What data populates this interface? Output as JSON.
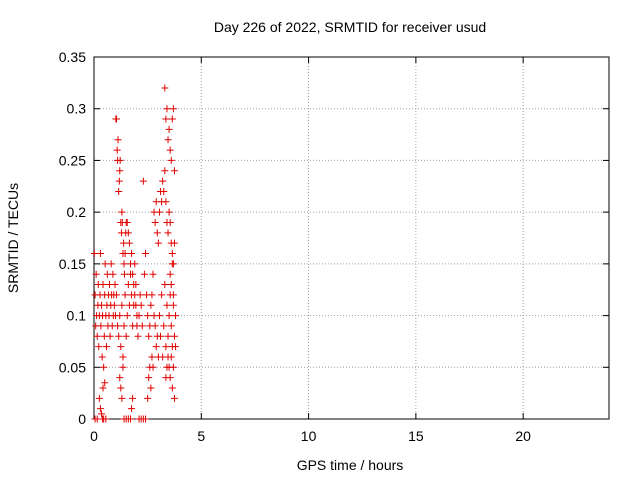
{
  "chart_data": {
    "type": "scatter",
    "title": "Day 226 of 2022, SRMTID for receiver usud",
    "xlabel": "GPS time / hours",
    "ylabel": "SRMTID / TECUs",
    "xlim": [
      0,
      24
    ],
    "ylim": [
      0,
      0.35
    ],
    "xticks": [
      0,
      5,
      10,
      15,
      20
    ],
    "xtick_labels": [
      "0",
      "5",
      "10",
      "15",
      "20"
    ],
    "yticks": [
      0,
      0.05,
      0.1,
      0.15,
      0.2,
      0.25,
      0.3,
      0.35
    ],
    "ytick_labels": [
      "0",
      "0.05",
      "0.1",
      "0.15",
      "0.2",
      "0.25",
      "0.3",
      "0.35"
    ],
    "grid": true,
    "marker": "+",
    "series": [
      {
        "color": "#e00000",
        "points": [
          [
            0.02,
            0.16
          ],
          [
            0.05,
            0.12
          ],
          [
            0.08,
            0.09
          ],
          [
            0.1,
            0.14
          ],
          [
            0.12,
            0.1
          ],
          [
            0.15,
            0.08
          ],
          [
            0.18,
            0.11
          ],
          [
            0.2,
            0.13
          ],
          [
            0.22,
            0.07
          ],
          [
            0.25,
            0.1
          ],
          [
            0.28,
            0.12
          ],
          [
            0.3,
            0.16
          ],
          [
            0.32,
            0.09
          ],
          [
            0.35,
            0.11
          ],
          [
            0.38,
            0.06
          ],
          [
            0.4,
            0.1
          ],
          [
            0.42,
            0.13
          ],
          [
            0.45,
            0.05
          ],
          [
            0.48,
            0.08
          ],
          [
            0.5,
            0.12
          ],
          [
            0.52,
            0.15
          ],
          [
            0.55,
            0.1
          ],
          [
            0.58,
            0.07
          ],
          [
            0.6,
            0.11
          ],
          [
            0.62,
            0.14
          ],
          [
            0.65,
            0.09
          ],
          [
            0.68,
            0.12
          ],
          [
            0.7,
            0.1
          ],
          [
            0.72,
            0.13
          ],
          [
            0.75,
            0.08
          ],
          [
            0.78,
            0.11
          ],
          [
            0.8,
            0.15
          ],
          [
            0.82,
            0.12
          ],
          [
            0.85,
            0.09
          ],
          [
            0.88,
            0.14
          ],
          [
            0.9,
            0.1
          ],
          [
            0.92,
            0.12
          ],
          [
            0.95,
            0.11
          ],
          [
            0.98,
            0.13
          ],
          [
            1.0,
            0.1
          ],
          [
            0.3,
            0.01
          ],
          [
            0.35,
            0.005
          ],
          [
            0.4,
            0.0
          ],
          [
            0.45,
            0.0
          ],
          [
            0.5,
            0.035
          ],
          [
            0.05,
            0.0
          ],
          [
            0.15,
            0.0
          ],
          [
            0.25,
            0.02
          ],
          [
            0.42,
            0.03
          ],
          [
            0.55,
            0.0
          ],
          [
            1.02,
            0.29
          ],
          [
            1.05,
            0.29
          ],
          [
            1.08,
            0.26
          ],
          [
            1.1,
            0.25
          ],
          [
            1.12,
            0.27
          ],
          [
            1.15,
            0.22
          ],
          [
            1.18,
            0.23
          ],
          [
            1.2,
            0.24
          ],
          [
            1.22,
            0.25
          ],
          [
            1.25,
            0.19
          ],
          [
            1.28,
            0.18
          ],
          [
            1.3,
            0.2
          ],
          [
            1.32,
            0.19
          ],
          [
            1.35,
            0.16
          ],
          [
            1.38,
            0.17
          ],
          [
            1.4,
            0.15
          ],
          [
            1.42,
            0.14
          ],
          [
            1.45,
            0.16
          ],
          [
            1.48,
            0.18
          ],
          [
            1.5,
            0.19
          ],
          [
            1.05,
            0.12
          ],
          [
            1.1,
            0.09
          ],
          [
            1.15,
            0.08
          ],
          [
            1.2,
            0.1
          ],
          [
            1.25,
            0.07
          ],
          [
            1.3,
            0.11
          ],
          [
            1.35,
            0.06
          ],
          [
            1.4,
            0.09
          ],
          [
            1.45,
            0.12
          ],
          [
            1.5,
            0.08
          ],
          [
            1.55,
            0.1
          ],
          [
            1.6,
            0.13
          ],
          [
            1.65,
            0.11
          ],
          [
            1.7,
            0.14
          ],
          [
            1.75,
            0.12
          ],
          [
            1.8,
            0.09
          ],
          [
            1.85,
            0.11
          ],
          [
            1.9,
            0.15
          ],
          [
            1.95,
            0.13
          ],
          [
            2.0,
            0.1
          ],
          [
            1.2,
            0.04
          ],
          [
            1.25,
            0.03
          ],
          [
            1.3,
            0.02
          ],
          [
            1.35,
            0.05
          ],
          [
            1.4,
            0.0
          ],
          [
            1.5,
            0.0
          ],
          [
            1.6,
            0.0
          ],
          [
            1.7,
            0.0
          ],
          [
            1.75,
            0.01
          ],
          [
            1.8,
            0.02
          ],
          [
            1.55,
            0.19
          ],
          [
            1.6,
            0.18
          ],
          [
            1.65,
            0.17
          ],
          [
            1.7,
            0.15
          ],
          [
            1.75,
            0.16
          ],
          [
            1.8,
            0.14
          ],
          [
            1.85,
            0.13
          ],
          [
            1.9,
            0.12
          ],
          [
            1.95,
            0.11
          ],
          [
            2.0,
            0.09
          ],
          [
            2.05,
            0.08
          ],
          [
            2.1,
            0.1
          ],
          [
            2.15,
            0.12
          ],
          [
            2.2,
            0.11
          ],
          [
            2.25,
            0.09
          ],
          [
            2.3,
            0.23
          ],
          [
            2.35,
            0.14
          ],
          [
            2.4,
            0.16
          ],
          [
            2.45,
            0.12
          ],
          [
            2.5,
            0.1
          ],
          [
            2.55,
            0.08
          ],
          [
            2.6,
            0.09
          ],
          [
            2.65,
            0.11
          ],
          [
            2.7,
            0.12
          ],
          [
            2.75,
            0.14
          ],
          [
            2.8,
            0.1
          ],
          [
            2.85,
            0.09
          ],
          [
            2.9,
            0.07
          ],
          [
            2.95,
            0.08
          ],
          [
            3.0,
            0.06
          ],
          [
            2.1,
            0.0
          ],
          [
            2.2,
            0.0
          ],
          [
            2.3,
            0.0
          ],
          [
            2.4,
            0.0
          ],
          [
            2.5,
            0.02
          ],
          [
            2.55,
            0.04
          ],
          [
            2.6,
            0.05
          ],
          [
            2.65,
            0.03
          ],
          [
            2.7,
            0.06
          ],
          [
            2.75,
            0.05
          ],
          [
            2.8,
            0.2
          ],
          [
            2.85,
            0.19
          ],
          [
            2.9,
            0.21
          ],
          [
            2.95,
            0.18
          ],
          [
            3.0,
            0.17
          ],
          [
            3.05,
            0.2
          ],
          [
            3.1,
            0.22
          ],
          [
            3.15,
            0.21
          ],
          [
            3.2,
            0.23
          ],
          [
            3.25,
            0.22
          ],
          [
            3.3,
            0.24
          ],
          [
            3.35,
            0.21
          ],
          [
            3.4,
            0.19
          ],
          [
            3.45,
            0.18
          ],
          [
            3.5,
            0.2
          ],
          [
            3.55,
            0.19
          ],
          [
            3.6,
            0.17
          ],
          [
            3.65,
            0.16
          ],
          [
            3.7,
            0.15
          ],
          [
            3.75,
            0.17
          ],
          [
            3.3,
            0.32
          ],
          [
            3.35,
            0.29
          ],
          [
            3.4,
            0.3
          ],
          [
            3.45,
            0.27
          ],
          [
            3.5,
            0.28
          ],
          [
            3.55,
            0.26
          ],
          [
            3.6,
            0.25
          ],
          [
            3.65,
            0.29
          ],
          [
            3.7,
            0.3
          ],
          [
            3.75,
            0.24
          ],
          [
            3.05,
            0.1
          ],
          [
            3.1,
            0.08
          ],
          [
            3.15,
            0.12
          ],
          [
            3.2,
            0.06
          ],
          [
            3.25,
            0.09
          ],
          [
            3.3,
            0.13
          ],
          [
            3.35,
            0.07
          ],
          [
            3.4,
            0.11
          ],
          [
            3.45,
            0.08
          ],
          [
            3.5,
            0.1
          ],
          [
            3.55,
            0.12
          ],
          [
            3.6,
            0.09
          ],
          [
            3.65,
            0.07
          ],
          [
            3.7,
            0.11
          ],
          [
            3.75,
            0.08
          ],
          [
            3.8,
            0.1
          ],
          [
            3.55,
            0.14
          ],
          [
            3.6,
            0.13
          ],
          [
            3.65,
            0.15
          ],
          [
            3.7,
            0.12
          ],
          [
            3.5,
            0.05
          ],
          [
            3.55,
            0.04
          ],
          [
            3.6,
            0.06
          ],
          [
            3.65,
            0.03
          ],
          [
            3.7,
            0.05
          ],
          [
            3.75,
            0.02
          ],
          [
            3.8,
            0.07
          ],
          [
            3.45,
            0.06
          ],
          [
            3.4,
            0.05
          ],
          [
            3.35,
            0.04
          ]
        ]
      }
    ]
  }
}
